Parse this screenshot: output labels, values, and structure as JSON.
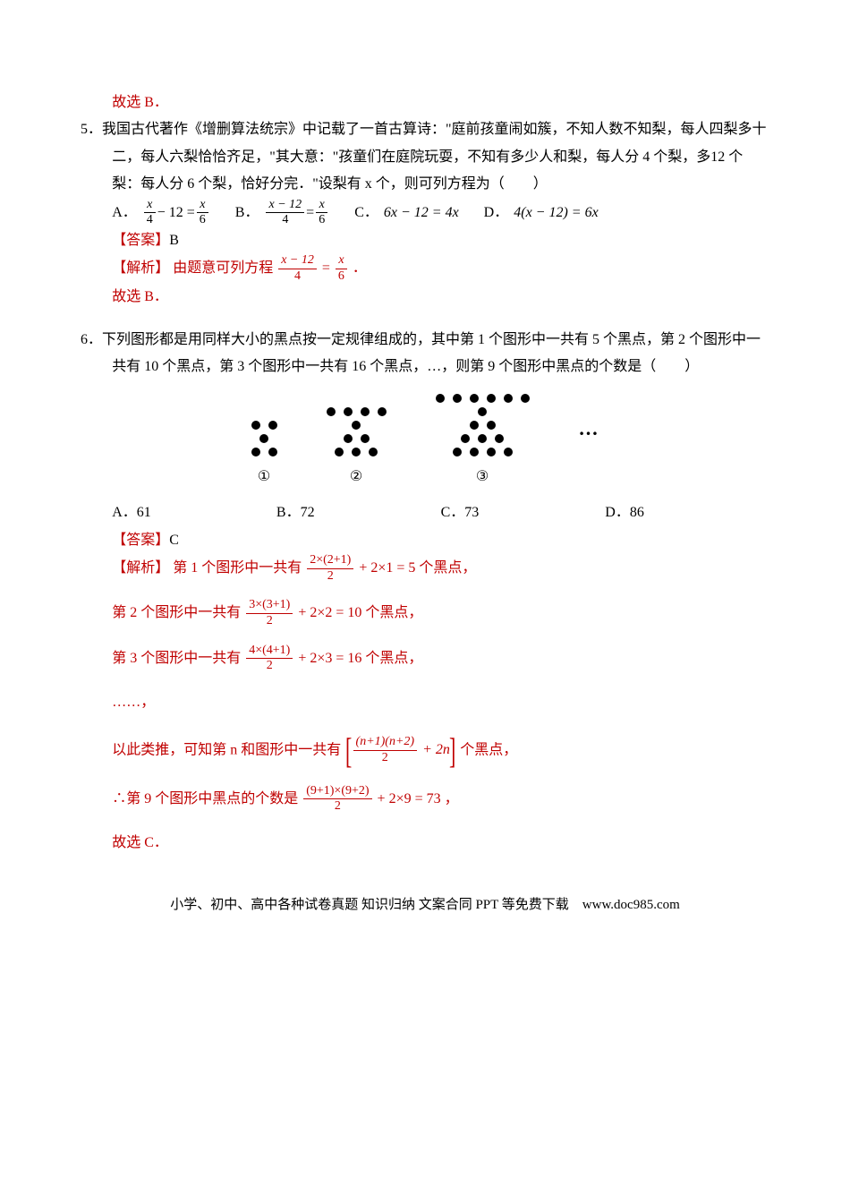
{
  "q4_tail": "故选 B．",
  "q5": {
    "num": "5．",
    "stem1": "我国古代著作《增删算法统宗》中记载了一首古算诗：\"庭前孩童闹如簇，不知人数不知梨，每人四梨多十二，每人六梨恰恰齐足，\"其大意：\"孩童们在庭院玩耍，不知有多少人和梨，每人分 4 个梨，多12 个梨：每人分 6 个梨，恰好分完．\"设梨有 x 个，则可列方程为（　　）",
    "opts": {
      "A": "A．",
      "B": "B．",
      "C": "C．",
      "D": "D．"
    },
    "optA_frac1_num": "x",
    "optA_frac1_den": "4",
    "optA_mid": " − 12 = ",
    "optA_frac2_num": "x",
    "optA_frac2_den": "6",
    "optB_frac1_num": "x − 12",
    "optB_frac1_den": "4",
    "optB_mid": " = ",
    "optB_frac2_num": "x",
    "optB_frac2_den": "6",
    "optC": "6x − 12 = 4x",
    "optD": "4(x − 12) = 6x",
    "ans_label": "【答案】",
    "ans": "B",
    "sol_label": "【解析】",
    "sol_pre": "由题意可列方程",
    "sol_frac1_num": "x − 12",
    "sol_frac1_den": "4",
    "sol_eq": " = ",
    "sol_frac2_num": "x",
    "sol_frac2_den": "6",
    "sol_post": "．",
    "conclude": "故选 B．"
  },
  "q6": {
    "num": "6．",
    "stem1": "下列图形都是用同样大小的黑点按一定规律组成的，其中第 1 个图形中一共有 5 个黑点，第 2 个图形中一共有 10 个黑点，第 3 个图形中一共有 16 个黑点，…，则第 9 个图形中黑点的个数是（　　）",
    "patterns": [
      {
        "rows": [
          2,
          1,
          2
        ],
        "label": "①"
      },
      {
        "rows": [
          4,
          1,
          2,
          3
        ],
        "label": "②"
      },
      {
        "rows": [
          6,
          1,
          2,
          3,
          4
        ],
        "label": "③"
      }
    ],
    "ellipsis": "…",
    "opts": {
      "A": "A．61",
      "B": "B．72",
      "C": "C．73",
      "D": "D．86"
    },
    "ans_label": "【答案】",
    "ans": "C",
    "sol_label": "【解析】",
    "line1_pre": "第 1 个图形中一共有",
    "line1_frac_num": "2×(2+1)",
    "line1_frac_den": "2",
    "line1_mid": " + 2×1 = 5",
    "line1_post": "个黑点，",
    "line2_pre": "第 2 个图形中一共有",
    "line2_frac_num": "3×(3+1)",
    "line2_frac_den": "2",
    "line2_mid": " + 2×2 = 10",
    "line2_post": "个黑点，",
    "line3_pre": "第 3 个图形中一共有",
    "line3_frac_num": "4×(4+1)",
    "line3_frac_den": "2",
    "line3_mid": " + 2×3 = 16",
    "line3_post": "个黑点，",
    "dots": "……，",
    "line4_pre": "以此类推，可知第 n 和图形中一共有",
    "line4_frac_num": "(n+1)(n+2)",
    "line4_frac_den": "2",
    "line4_mid": " + 2n",
    "line4_post": "个黑点，",
    "line5_pre": "∴第 9 个图形中黑点的个数是",
    "line5_frac_num": "(9+1)×(9+2)",
    "line5_frac_den": "2",
    "line5_mid": " + 2×9 = 73",
    "line5_post": "，",
    "conclude": "故选 C．"
  },
  "footer": "小学、初中、高中各种试卷真题 知识归纳 文案合同 PPT 等免费下载　www.doc985.com"
}
